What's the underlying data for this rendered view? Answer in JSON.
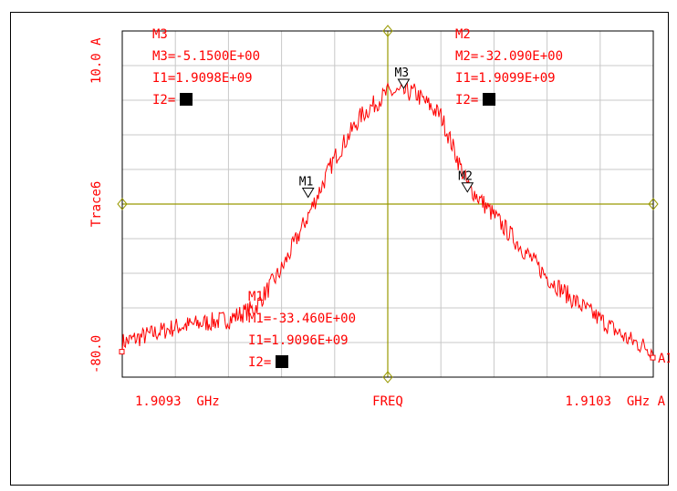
{
  "chart_data": {
    "type": "line",
    "ylabel": "Trace6",
    "y_top_label": "10.0 A",
    "y_bottom_label": "-80.0",
    "ylim": [
      -80.0,
      10.0
    ],
    "x_left_label": "1.9093  GHz",
    "x_center_label": "FREQ",
    "x_right_label": "1.9103  GHz A",
    "xlim_ghz": [
      1.9093,
      1.9103
    ],
    "trace_end_label": "A1",
    "grid": true,
    "colors": {
      "trace": "#ff0000",
      "grid": "#c8c8c8",
      "crosshair": "#999900",
      "text": "#ff0000",
      "marker": "#000000"
    },
    "markers": [
      {
        "id": "M1",
        "x_ghz": 1.90965,
        "y": -33.46,
        "lines": [
          "M1",
          "M1=-33.460E+00",
          "I1=1.9096E+09",
          "I2="
        ]
      },
      {
        "id": "M2",
        "x_ghz": 1.90995,
        "y": -32.09,
        "lines": [
          "M2",
          "M2=-32.090E+00",
          "I1=1.9099E+09",
          "I2="
        ]
      },
      {
        "id": "M3",
        "x_ghz": 1.90983,
        "y": -5.15,
        "lines": [
          "M3",
          "M3=-5.1500E+00",
          "I1=1.9098E+09",
          "I2="
        ]
      }
    ],
    "series": [
      {
        "x_ghz": [
          1.9093,
          1.90935,
          1.9094,
          1.90945,
          1.9095,
          1.90955,
          1.9096,
          1.90965,
          1.9097,
          1.90975,
          1.9098,
          1.90985,
          1.9099,
          1.90995,
          1.91,
          1.91005,
          1.9101,
          1.91015,
          1.9102,
          1.91025,
          1.9103
        ],
        "y": [
          -71,
          -69,
          -67,
          -66,
          -65,
          -62,
          -52,
          -38,
          -23,
          -12,
          -6,
          -6,
          -12,
          -30,
          -38,
          -46,
          -54,
          -60,
          -65,
          -70,
          -73
        ]
      }
    ]
  }
}
